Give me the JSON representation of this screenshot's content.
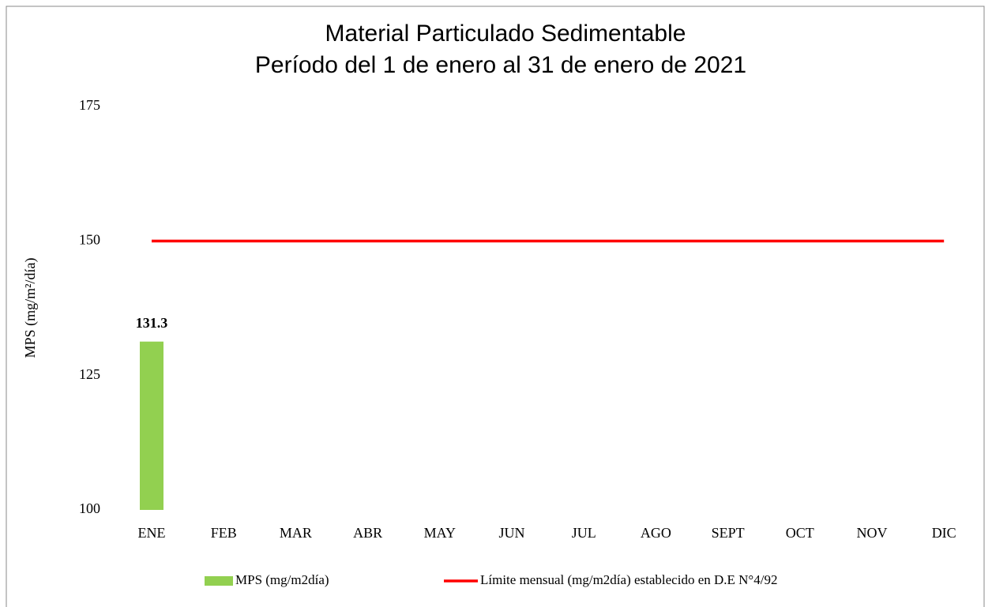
{
  "chart_data": {
    "type": "bar",
    "title": [
      "Material Particulado Sedimentable",
      "Período del 1 de enero al 31 de enero de 2021"
    ],
    "y_label": "MPS (mg/m²/día)",
    "categories": [
      "ENE",
      "FEB",
      "MAR",
      "ABR",
      "MAY",
      "JUN",
      "JUL",
      "AGO",
      "SEPT",
      "OCT",
      "NOV",
      "DIC"
    ],
    "series": [
      {
        "name": "MPS (mg/m2día)",
        "type": "bar",
        "color": "#92d050",
        "values": [
          131.3,
          null,
          null,
          null,
          null,
          null,
          null,
          null,
          null,
          null,
          null,
          null
        ]
      },
      {
        "name": "Límite mensual (mg/m2día) establecido en D.E N°4/92",
        "type": "line",
        "color": "#ff0000",
        "values": [
          150,
          150,
          150,
          150,
          150,
          150,
          150,
          150,
          150,
          150,
          150,
          150
        ]
      }
    ],
    "ylim": [
      100,
      175
    ],
    "yticks": [
      100,
      125,
      150,
      175
    ],
    "grid": false,
    "legend": "bottom"
  }
}
